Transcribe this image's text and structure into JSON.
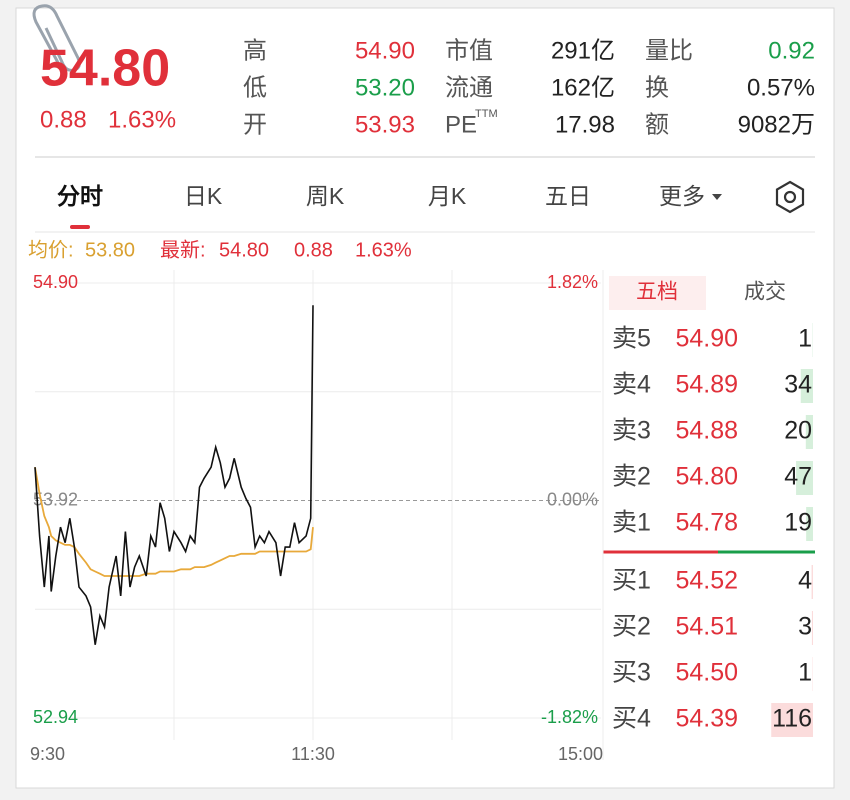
{
  "quote": {
    "price": "54.80",
    "change": "0.88",
    "change_pct": "1.63%",
    "stats": [
      [
        {
          "label": "高",
          "value": "54.90",
          "color": "#e0303a"
        },
        {
          "label": "低",
          "value": "53.20",
          "color": "#1a9e4a"
        },
        {
          "label": "开",
          "value": "53.93",
          "color": "#e0303a"
        }
      ],
      [
        {
          "label": "市值",
          "value": "291亿",
          "color": "#222222"
        },
        {
          "label": "流通",
          "value": "162亿",
          "color": "#222222"
        },
        {
          "label": "PE",
          "sup": "TTM",
          "value": "17.98",
          "color": "#222222"
        }
      ],
      [
        {
          "label": "量比",
          "value": "0.92",
          "color": "#1a9e4a"
        },
        {
          "label": "换",
          "value": "0.57%",
          "color": "#222222"
        },
        {
          "label": "额",
          "value": "9082万",
          "color": "#222222"
        }
      ]
    ]
  },
  "tabs": [
    "分时",
    "日K",
    "周K",
    "月K",
    "五日",
    "更多"
  ],
  "info": {
    "avg_label": "均价:",
    "avg": "53.80",
    "latest_label": "最新:",
    "latest": "54.80",
    "change": "0.88",
    "change_pct": "1.63%"
  },
  "chart_data": {
    "type": "line",
    "x": [
      0,
      2,
      4,
      6,
      7,
      9,
      11,
      13,
      15,
      17,
      19,
      22,
      24,
      26,
      28,
      30,
      32,
      35,
      37,
      39,
      41,
      43,
      45,
      48,
      50,
      52,
      54,
      56,
      58,
      60,
      63,
      65,
      67,
      69,
      71,
      73,
      76,
      78,
      80,
      82,
      84,
      86,
      89,
      91,
      93,
      95,
      97,
      99,
      101,
      104,
      106,
      108,
      110,
      112,
      114,
      117,
      119,
      120
    ],
    "series": [
      {
        "color": "#111111",
        "values": [
          54.07,
          53.76,
          53.53,
          53.76,
          53.51,
          53.67,
          53.8,
          53.73,
          53.84,
          53.71,
          53.53,
          53.49,
          53.44,
          53.27,
          53.4,
          53.35,
          53.53,
          53.67,
          53.49,
          53.78,
          53.53,
          53.62,
          53.67,
          53.58,
          53.76,
          53.71,
          53.91,
          53.84,
          53.69,
          53.78,
          53.73,
          53.69,
          53.76,
          53.73,
          53.98,
          54.02,
          54.07,
          54.16,
          54.09,
          53.98,
          54.02,
          54.11,
          53.98,
          53.93,
          53.89,
          53.71,
          53.76,
          53.73,
          53.78,
          53.73,
          53.58,
          53.71,
          53.71,
          53.82,
          53.73,
          53.76,
          53.84,
          54.8
        ]
      },
      {
        "color": "#e8a93a",
        "values": [
          54.07,
          53.95,
          53.85,
          53.8,
          53.76,
          53.74,
          53.73,
          53.72,
          53.72,
          53.71,
          53.68,
          53.64,
          53.61,
          53.6,
          53.59,
          53.58,
          53.58,
          53.58,
          53.58,
          53.58,
          53.58,
          53.58,
          53.58,
          53.59,
          53.59,
          53.59,
          53.6,
          53.6,
          53.6,
          53.6,
          53.61,
          53.61,
          53.61,
          53.62,
          53.62,
          53.62,
          53.63,
          53.64,
          53.65,
          53.66,
          53.67,
          53.67,
          53.68,
          53.68,
          53.68,
          53.68,
          53.69,
          53.69,
          53.69,
          53.69,
          53.69,
          53.69,
          53.69,
          53.69,
          53.69,
          53.69,
          53.7,
          53.8
        ]
      }
    ],
    "xlim": [
      0,
      240
    ],
    "xticks": [
      {
        "value": 0,
        "label": "9:30"
      },
      {
        "value": 120,
        "label": "11:30"
      },
      {
        "value": 240,
        "label": "15:00"
      }
    ],
    "ylim": [
      52.94,
      54.9
    ],
    "yticks": [
      {
        "value": 54.9,
        "label": "54.90"
      },
      53.92,
      52.94
    ],
    "y2lim": [
      -1.82,
      1.82
    ],
    "y2ticks": [
      {
        "value": 1.82,
        "label": "1.82%"
      },
      {
        "value": 0,
        "label": "0.00%"
      },
      {
        "value": -1.82,
        "label": "-1.82%"
      }
    ],
    "grid": true
  },
  "order_book": {
    "tabs": [
      "五档",
      "成交"
    ],
    "asks": [
      {
        "label": "卖5",
        "price": "54.90",
        "volume": 1
      },
      {
        "label": "卖4",
        "price": "54.89",
        "volume": 34
      },
      {
        "label": "卖3",
        "price": "54.88",
        "volume": 20
      },
      {
        "label": "卖2",
        "price": "54.80",
        "volume": 47
      },
      {
        "label": "卖1",
        "price": "54.78",
        "volume": 19
      }
    ],
    "bids": [
      {
        "label": "买1",
        "price": "54.52",
        "volume": 4
      },
      {
        "label": "买2",
        "price": "54.51",
        "volume": 3
      },
      {
        "label": "买3",
        "price": "54.50",
        "volume": 1
      },
      {
        "label": "买4",
        "price": "54.39",
        "volume": 116
      }
    ]
  }
}
